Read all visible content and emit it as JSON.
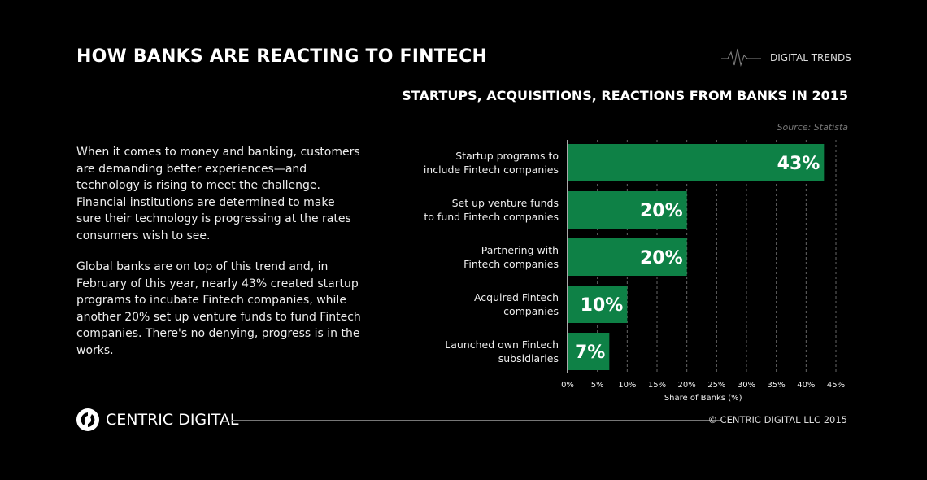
{
  "header": {
    "title": "HOW BANKS ARE REACTING TO FINTECH",
    "brand": "DIGITAL TRENDS"
  },
  "body": {
    "paragraphs": [
      "When it comes to money and banking, customers are demanding better experiences—and technology is rising to meet the challenge. Financial institutions are determined to make sure their technology is progressing at the rates consumers wish to see.",
      "Global banks are on top of this trend and, in February of this year, nearly 43% created startup programs to incubate Fintech companies, while another 20% set up venture funds to fund Fintech companies. There's no denying, progress is in the works."
    ]
  },
  "chart_data": {
    "type": "bar",
    "orientation": "horizontal",
    "title": "STARTUPS, ACQUISITIONS, REACTIONS FROM BANKS IN 2015",
    "source": "Source: Statista",
    "categories": [
      [
        "Startup programs to",
        "include Fintech companies"
      ],
      [
        "Set up venture funds",
        "to fund Fintech companies"
      ],
      [
        "Partnering with",
        "Fintech companies"
      ],
      [
        "Acquired Fintech",
        "companies"
      ],
      [
        "Launched own Fintech",
        "subsidiaries"
      ]
    ],
    "values": [
      43,
      20,
      20,
      10,
      7
    ],
    "data_labels": [
      "43%",
      "20%",
      "20%",
      "10%",
      "7%"
    ],
    "xlabel": "Share of Banks (%)",
    "xlim": [
      0,
      45
    ],
    "ticks": [
      0,
      5,
      10,
      15,
      20,
      25,
      30,
      35,
      40,
      45
    ],
    "tick_labels": [
      "0%",
      "5%",
      "10%",
      "15%",
      "20%",
      "25%",
      "30%",
      "35%",
      "40%",
      "45%"
    ],
    "grid": true,
    "bar_color": "#0e8146"
  },
  "footer": {
    "logo_text": "CENTRIC DIGITAL",
    "copyright": "© CENTRIC DIGITAL LLC 2015"
  }
}
